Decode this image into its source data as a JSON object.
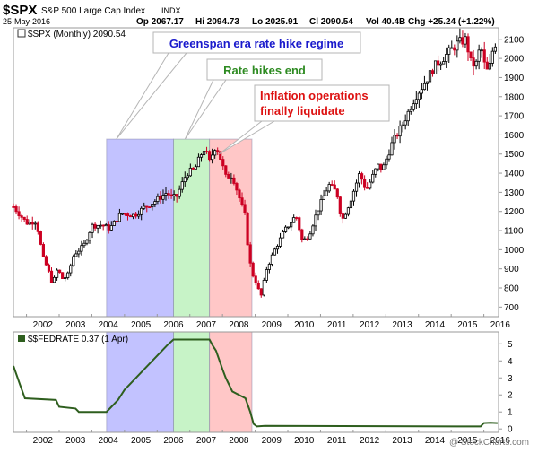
{
  "header": {
    "ticker": "$SPX",
    "name": "S&P 500 Large Cap Index",
    "exchange": "INDX",
    "date": "25-May-2016",
    "open": "Op 2067.17",
    "high": "Hi 2094.73",
    "low": "Lo 2025.91",
    "close": "Cl 2090.54",
    "volume": "Vol 40.4B",
    "change": "Chg +25.24 (+1.22%)",
    "watermark": "@ StockCharts.com"
  },
  "colors": {
    "up": "#000000",
    "down": "#cc0022",
    "greenspan_band": "#aaaaff",
    "rate_end_band": "#b2eeb2",
    "inflation_band": "#ffb2b2",
    "fedrate_line": "#2e5e1e",
    "callout_blue": "#1a1acc",
    "callout_green": "#2e8b22",
    "callout_red": "#dd1111"
  },
  "chart_data": [
    {
      "type": "candlestick",
      "legend": "$SPX (Monthly) 2090.54",
      "x_range": [
        2001.6,
        2016.45
      ],
      "ylim": [
        650,
        2160
      ],
      "y_ticks": [
        700,
        800,
        900,
        1000,
        1100,
        1200,
        1300,
        1400,
        1500,
        1600,
        1700,
        1800,
        1900,
        2000,
        2100
      ],
      "x_tick_labels": [
        "2002",
        "2003",
        "2004",
        "2005",
        "2006",
        "2007",
        "2008",
        "2009",
        "2010",
        "2011",
        "2012",
        "2013",
        "2014",
        "2015",
        "2016"
      ],
      "close_path": [
        [
          2001.6,
          1225
        ],
        [
          2002.0,
          1140
        ],
        [
          2002.3,
          1150
        ],
        [
          2002.5,
          960
        ],
        [
          2002.65,
          900
        ],
        [
          2002.8,
          820
        ],
        [
          2002.95,
          900
        ],
        [
          2003.1,
          850
        ],
        [
          2003.25,
          860
        ],
        [
          2003.45,
          975
        ],
        [
          2003.75,
          1020
        ],
        [
          2004.0,
          1125
        ],
        [
          2004.3,
          1130
        ],
        [
          2004.55,
          1110
        ],
        [
          2004.9,
          1190
        ],
        [
          2005.3,
          1180
        ],
        [
          2005.6,
          1220
        ],
        [
          2005.9,
          1250
        ],
        [
          2006.3,
          1300
        ],
        [
          2006.45,
          1270
        ],
        [
          2006.6,
          1280
        ],
        [
          2006.9,
          1400
        ],
        [
          2007.15,
          1420
        ],
        [
          2007.35,
          1500
        ],
        [
          2007.45,
          1530
        ],
        [
          2007.6,
          1460
        ],
        [
          2007.8,
          1550
        ],
        [
          2007.95,
          1470
        ],
        [
          2008.1,
          1380
        ],
        [
          2008.3,
          1390
        ],
        [
          2008.5,
          1280
        ],
        [
          2008.7,
          1170
        ],
        [
          2008.8,
          970
        ],
        [
          2008.9,
          880
        ],
        [
          2009.05,
          820
        ],
        [
          2009.17,
          750
        ],
        [
          2009.35,
          900
        ],
        [
          2009.6,
          1000
        ],
        [
          2009.9,
          1100
        ],
        [
          2010.25,
          1180
        ],
        [
          2010.45,
          1040
        ],
        [
          2010.65,
          1080
        ],
        [
          2010.9,
          1200
        ],
        [
          2011.25,
          1340
        ],
        [
          2011.5,
          1300
        ],
        [
          2011.65,
          1150
        ],
        [
          2011.9,
          1250
        ],
        [
          2012.2,
          1400
        ],
        [
          2012.4,
          1310
        ],
        [
          2012.75,
          1440
        ],
        [
          2012.9,
          1420
        ],
        [
          2013.2,
          1560
        ],
        [
          2013.5,
          1650
        ],
        [
          2013.9,
          1800
        ],
        [
          2014.1,
          1850
        ],
        [
          2014.5,
          1960
        ],
        [
          2014.8,
          2010
        ],
        [
          2015.2,
          2080
        ],
        [
          2015.45,
          2100
        ],
        [
          2015.6,
          1980
        ],
        [
          2015.75,
          1960
        ],
        [
          2015.9,
          2070
        ],
        [
          2016.05,
          1940
        ],
        [
          2016.15,
          1930
        ],
        [
          2016.3,
          2070
        ],
        [
          2016.42,
          2090
        ]
      ]
    },
    {
      "type": "line",
      "legend": "$$FEDRATE 0.37 (1 Apr)",
      "ylim": [
        -0.2,
        5.7
      ],
      "y_ticks": [
        0,
        1,
        2,
        3,
        4,
        5
      ],
      "x_tick_labels": [
        "2002",
        "2003",
        "2004",
        "2005",
        "2006",
        "2007",
        "2008",
        "2009",
        "2010",
        "2011",
        "2012",
        "2013",
        "2014",
        "2015",
        "2016"
      ],
      "points": [
        [
          2001.6,
          3.7
        ],
        [
          2001.8,
          2.6
        ],
        [
          2001.95,
          1.8
        ],
        [
          2002.9,
          1.7
        ],
        [
          2003.0,
          1.3
        ],
        [
          2003.5,
          1.2
        ],
        [
          2003.6,
          1.0
        ],
        [
          2004.45,
          1.0
        ],
        [
          2004.6,
          1.3
        ],
        [
          2004.8,
          1.7
        ],
        [
          2005.0,
          2.3
        ],
        [
          2005.25,
          2.8
        ],
        [
          2005.5,
          3.3
        ],
        [
          2005.75,
          3.8
        ],
        [
          2006.0,
          4.3
        ],
        [
          2006.3,
          4.9
        ],
        [
          2006.5,
          5.25
        ],
        [
          2007.6,
          5.25
        ],
        [
          2007.7,
          4.9
        ],
        [
          2007.8,
          4.6
        ],
        [
          2008.0,
          3.5
        ],
        [
          2008.1,
          3.0
        ],
        [
          2008.3,
          2.2
        ],
        [
          2008.7,
          1.8
        ],
        [
          2008.85,
          1.0
        ],
        [
          2008.95,
          0.3
        ],
        [
          2009.05,
          0.15
        ],
        [
          2009.3,
          0.18
        ],
        [
          2015.9,
          0.15
        ],
        [
          2016.0,
          0.35
        ],
        [
          2016.2,
          0.37
        ],
        [
          2016.42,
          0.35
        ]
      ]
    }
  ],
  "bands": [
    {
      "name": "greenspan",
      "start": 2004.45,
      "end": 2006.5
    },
    {
      "name": "rate-hikes-end",
      "start": 2006.5,
      "end": 2007.6
    },
    {
      "name": "inflation",
      "start": 2007.6,
      "end": 2008.9
    }
  ],
  "annotations": [
    {
      "name": "greenspan",
      "text": "Greenspan era rate hike regime",
      "color_key": "callout_blue",
      "target": [
        2004.75,
        1578
      ]
    },
    {
      "name": "rate-hikes-end",
      "text": "Rate hikes end",
      "color_key": "callout_green",
      "target": [
        2006.85,
        1578
      ]
    },
    {
      "name": "inflation",
      "lines": [
        "Inflation operations",
        "finally liquidate"
      ],
      "color_key": "callout_red",
      "target": [
        2007.9,
        1500
      ]
    }
  ]
}
